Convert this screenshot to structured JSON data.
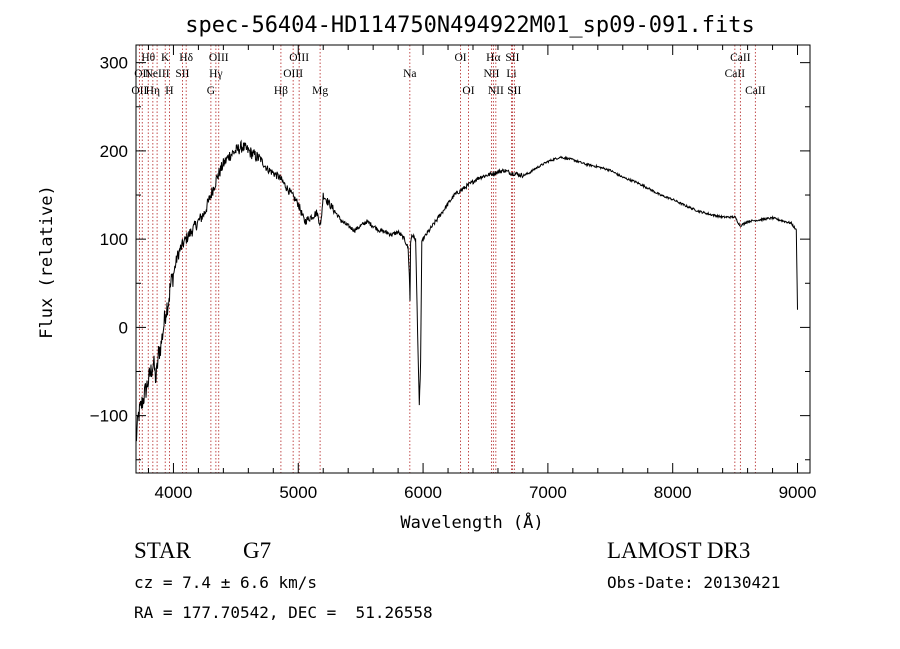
{
  "chart_data": {
    "type": "line",
    "title": "spec-56404-HD114750N494922M01_sp09-091.fits",
    "xlabel": "Wavelength (Å)",
    "ylabel": "Flux (relative)",
    "xlim": [
      3700,
      9100
    ],
    "ylim": [
      -165,
      320
    ],
    "xticks": [
      4000,
      5000,
      6000,
      7000,
      8000,
      9000
    ],
    "xtick_labels": [
      "4000",
      "5000",
      "6000",
      "7000",
      "8000",
      "9000"
    ],
    "yticks": [
      -100,
      0,
      100,
      200,
      300
    ],
    "ytick_labels": [
      "−100",
      "0",
      "100",
      "200",
      "300"
    ],
    "grid": false,
    "series": [
      {
        "x": [
          3700,
          3720,
          3740,
          3760,
          3780,
          3800,
          3820,
          3840,
          3860,
          3880,
          3900,
          3920,
          3940,
          3960,
          3980,
          4000,
          4030,
          4060,
          4100,
          4150,
          4200,
          4250,
          4300,
          4350,
          4400,
          4450,
          4500,
          4550,
          4600,
          4650,
          4700,
          4750,
          4800,
          4850,
          4900,
          4950,
          5000,
          5050,
          5100,
          5150,
          5180,
          5200,
          5250,
          5300,
          5350,
          5400,
          5450,
          5500,
          5550,
          5600,
          5650,
          5700,
          5750,
          5800,
          5850,
          5880,
          5890,
          5895,
          5900,
          5910,
          5940,
          5960,
          5970,
          5980,
          5990,
          6000,
          6050,
          6100,
          6150,
          6200,
          6250,
          6300,
          6350,
          6400,
          6450,
          6500,
          6550,
          6600,
          6650,
          6700,
          6750,
          6800,
          6850,
          6900,
          7000,
          7100,
          7200,
          7300,
          7400,
          7500,
          7600,
          7700,
          7800,
          7900,
          8000,
          8100,
          8200,
          8300,
          8400,
          8500,
          8540,
          8600,
          8700,
          8800,
          8900,
          8950,
          8990,
          9000
        ],
        "y": [
          -130,
          -100,
          -90,
          -80,
          -70,
          -60,
          -50,
          -40,
          -60,
          -30,
          -20,
          0,
          20,
          30,
          50,
          60,
          80,
          90,
          100,
          110,
          120,
          130,
          150,
          170,
          185,
          195,
          200,
          205,
          200,
          195,
          190,
          180,
          175,
          170,
          160,
          150,
          140,
          120,
          125,
          130,
          115,
          150,
          140,
          130,
          120,
          115,
          110,
          115,
          120,
          115,
          110,
          108,
          105,
          108,
          100,
          90,
          60,
          30,
          95,
          105,
          100,
          -30,
          -90,
          -40,
          95,
          100,
          110,
          120,
          130,
          140,
          150,
          155,
          160,
          165,
          170,
          172,
          174,
          176,
          178,
          175,
          174,
          172,
          175,
          180,
          188,
          193,
          190,
          185,
          182,
          178,
          170,
          165,
          158,
          150,
          145,
          138,
          132,
          128,
          125,
          125,
          115,
          120,
          122,
          124,
          120,
          118,
          110,
          20
        ],
        "style": "black-solid"
      }
    ],
    "line_markers": [
      {
        "wl": 3727,
        "labels": [
          "OII"
        ],
        "row": 2
      },
      {
        "wl": 3750,
        "labels": [
          "OII"
        ],
        "row": 1
      },
      {
        "wl": 3798,
        "labels": [
          "Hθ"
        ],
        "row": 0
      },
      {
        "wl": 3835,
        "labels": [
          "Hη"
        ],
        "row": 2
      },
      {
        "wl": 3869,
        "labels": [
          "NeIII"
        ],
        "row": 1
      },
      {
        "wl": 3934,
        "labels": [
          "K"
        ],
        "row": 0
      },
      {
        "wl": 3968,
        "labels": [
          "H"
        ],
        "row": 2
      },
      {
        "wl": 4072,
        "labels": [
          "SII"
        ],
        "row": 1
      },
      {
        "wl": 4102,
        "labels": [
          "Hδ"
        ],
        "row": 0
      },
      {
        "wl": 4300,
        "labels": [
          "G"
        ],
        "row": 2
      },
      {
        "wl": 4340,
        "labels": [
          "Hγ"
        ],
        "row": 1
      },
      {
        "wl": 4363,
        "labels": [
          "OIII"
        ],
        "row": 0
      },
      {
        "wl": 4861,
        "labels": [
          "Hβ"
        ],
        "row": 2
      },
      {
        "wl": 4959,
        "labels": [
          "OIII"
        ],
        "row": 1
      },
      {
        "wl": 5007,
        "labels": [
          "OIII"
        ],
        "row": 0
      },
      {
        "wl": 5175,
        "labels": [
          "Mg"
        ],
        "row": 2
      },
      {
        "wl": 5894,
        "labels": [
          "Na"
        ],
        "row": 1
      },
      {
        "wl": 6300,
        "labels": [
          "OI"
        ],
        "row": 0
      },
      {
        "wl": 6364,
        "labels": [
          "OI"
        ],
        "row": 2
      },
      {
        "wl": 6548,
        "labels": [
          "NII"
        ],
        "row": 1
      },
      {
        "wl": 6563,
        "labels": [
          "Hα"
        ],
        "row": 0
      },
      {
        "wl": 6583,
        "labels": [
          "NII"
        ],
        "row": 2
      },
      {
        "wl": 6708,
        "labels": [
          "Li"
        ],
        "row": 1
      },
      {
        "wl": 6716,
        "labels": [
          "SII"
        ],
        "row": 0
      },
      {
        "wl": 6731,
        "labels": [
          "SII"
        ],
        "row": 2
      },
      {
        "wl": 8498,
        "labels": [
          "CaII"
        ],
        "row": 1
      },
      {
        "wl": 8542,
        "labels": [
          "CaII"
        ],
        "row": 0
      },
      {
        "wl": 8662,
        "labels": [
          "CaII"
        ],
        "row": 2
      }
    ],
    "marker_color": "#b22222"
  },
  "footer": {
    "class_label": "STAR",
    "subclass": "G7",
    "survey": "LAMOST DR3",
    "cz": "cz = 7.4 ± 6.6 km/s",
    "obs_date": "Obs-Date: 20130421",
    "radec": "RA = 177.70542, DEC =  51.26558"
  }
}
